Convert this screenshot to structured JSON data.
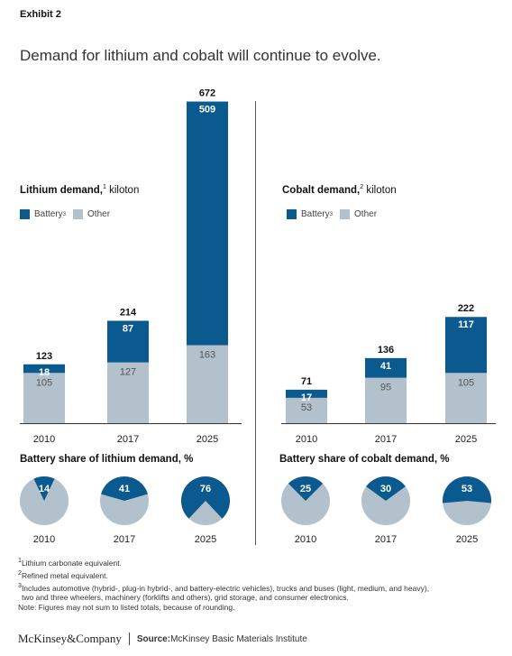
{
  "exhibit": "Exhibit 2",
  "headline": "Demand for lithium and cobalt will continue to evolve.",
  "colors": {
    "battery": "#0b5a8f",
    "other": "#b3c1cc",
    "axis": "#333333"
  },
  "legend": {
    "battery": "Battery",
    "battery_sup": "3",
    "other": "Other"
  },
  "lithium": {
    "title_bold": "Lithium demand,",
    "title_sup": "1",
    "title_unit": " kiloton",
    "pie_title": "Battery share of lithium demand, %"
  },
  "cobalt": {
    "title_bold": "Cobalt demand,",
    "title_sup": "2",
    "title_unit": " kiloton",
    "pie_title": "Battery share of cobalt demand, %"
  },
  "chart_data": [
    {
      "type": "bar",
      "title": "Lithium demand, kiloton",
      "categories": [
        "2010",
        "2017",
        "2025"
      ],
      "series": [
        {
          "name": "Battery",
          "values": [
            18,
            87,
            509
          ]
        },
        {
          "name": "Other",
          "values": [
            105,
            127,
            163
          ]
        }
      ],
      "totals": [
        123,
        214,
        672
      ],
      "stacked": true
    },
    {
      "type": "bar",
      "title": "Cobalt demand, kiloton",
      "categories": [
        "2010",
        "2017",
        "2025"
      ],
      "series": [
        {
          "name": "Battery",
          "values": [
            17,
            41,
            117
          ]
        },
        {
          "name": "Other",
          "values": [
            53,
            95,
            105
          ]
        }
      ],
      "totals": [
        71,
        136,
        222
      ],
      "stacked": true
    },
    {
      "type": "pie",
      "title": "Battery share of lithium demand, %",
      "categories": [
        "2010",
        "2017",
        "2025"
      ],
      "values": [
        14,
        41,
        76
      ]
    },
    {
      "type": "pie",
      "title": "Battery share of cobalt demand, %",
      "categories": [
        "2010",
        "2017",
        "2025"
      ],
      "values": [
        25,
        30,
        53
      ]
    }
  ],
  "notes": [
    {
      "sup": "1",
      "text": "Lithium carbonate equivalent."
    },
    {
      "sup": "2",
      "text": "Refined metal equivalent."
    },
    {
      "sup": "3",
      "text": "Includes automotive (hybrid-, plug-in hybrid-, and battery-electric vehicles), trucks and buses (light, medium, and heavy),"
    },
    {
      "sup": "",
      "text": "two and three wheelers, machinery (forklifts and others), grid storage, and consumer electronics."
    },
    {
      "sup": "",
      "text": "Note: Figures may not sum to listed totals, because of rounding."
    }
  ],
  "footer": {
    "brand": "McKinsey&Company",
    "source_label": "Source:",
    "source": " McKinsey Basic Materials Institute"
  }
}
